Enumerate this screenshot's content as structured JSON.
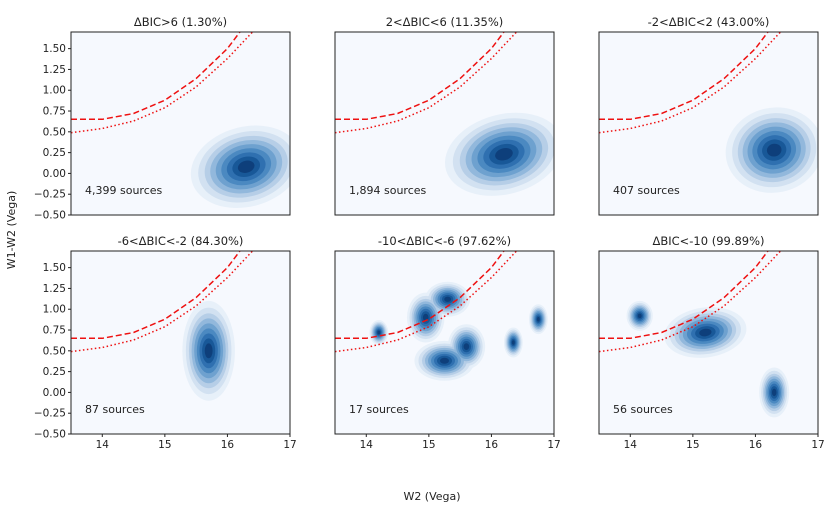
{
  "chart_data": {
    "type": "kde-contour-grid",
    "xlabel": "W2 (Vega)",
    "ylabel": "W1-W2 (Vega)",
    "xlim": [
      13.5,
      17
    ],
    "ylim": [
      -0.5,
      1.7
    ],
    "xticks": [
      14,
      15,
      16,
      17
    ],
    "xtick_labels": [
      "14",
      "15",
      "16",
      "17"
    ],
    "yticks": [
      -0.5,
      -0.25,
      0,
      0.25,
      0.5,
      0.75,
      1.0,
      1.25,
      1.5
    ],
    "ytick_labels": [
      "−0.50",
      "−0.25",
      "0.00",
      "0.25",
      "0.50",
      "0.75",
      "1.00",
      "1.25",
      "1.50"
    ],
    "colors": {
      "background": "#f6f9fe",
      "curve": "#ee1111",
      "levels": [
        "#e6eef8",
        "#cfdff0",
        "#b2cce6",
        "#8eb6da",
        "#6a9ecd",
        "#4786bf",
        "#2c6eae",
        "#165596",
        "#0d3d78"
      ]
    },
    "reference_curves": [
      {
        "name": "dashed",
        "style": "dashed",
        "points": [
          [
            13.5,
            0.65
          ],
          [
            14.0,
            0.65
          ],
          [
            14.5,
            0.72
          ],
          [
            15.0,
            0.88
          ],
          [
            15.5,
            1.14
          ],
          [
            16.0,
            1.5
          ],
          [
            16.2,
            1.7
          ]
        ]
      },
      {
        "name": "dotted",
        "style": "dotted",
        "points": [
          [
            13.5,
            0.49
          ],
          [
            14.0,
            0.54
          ],
          [
            14.5,
            0.63
          ],
          [
            15.0,
            0.79
          ],
          [
            15.5,
            1.04
          ],
          [
            16.0,
            1.38
          ],
          [
            16.4,
            1.7
          ]
        ]
      }
    ],
    "panels": [
      {
        "title": "ΔBIC>6 (1.30%)",
        "count_label": "4,399 sources",
        "blobs": [
          {
            "x": 16.3,
            "y": 0.08,
            "sx": 0.3,
            "sy": 0.16,
            "rot": -15
          }
        ]
      },
      {
        "title": "2<ΔBIC<6 (11.35%)",
        "count_label": "1,894 sources",
        "blobs": [
          {
            "x": 16.2,
            "y": 0.23,
            "sx": 0.32,
            "sy": 0.16,
            "rot": -15
          }
        ]
      },
      {
        "title": "-2<ΔBIC<2 (43.00%)",
        "count_label": "407 sources",
        "blobs": [
          {
            "x": 16.3,
            "y": 0.28,
            "sx": 0.26,
            "sy": 0.17,
            "rot": -12
          }
        ]
      },
      {
        "title": "-6<ΔBIC<-2 (84.30%)",
        "count_label": "87 sources",
        "blobs": [
          {
            "x": 15.7,
            "y": 0.5,
            "sx": 0.14,
            "sy": 0.2,
            "rot": 0
          }
        ]
      },
      {
        "title": "-10<ΔBIC<-6 (97.62%)",
        "count_label": "17 sources",
        "blobs": [
          {
            "x": 15.3,
            "y": 1.12,
            "sx": 0.12,
            "sy": 0.07,
            "rot": 0
          },
          {
            "x": 14.95,
            "y": 0.9,
            "sx": 0.1,
            "sy": 0.1,
            "rot": 0
          },
          {
            "x": 15.25,
            "y": 0.38,
            "sx": 0.16,
            "sy": 0.08,
            "rot": 0
          },
          {
            "x": 15.6,
            "y": 0.55,
            "sx": 0.1,
            "sy": 0.09,
            "rot": 0
          },
          {
            "x": 16.75,
            "y": 0.88,
            "sx": 0.05,
            "sy": 0.06,
            "rot": 0
          },
          {
            "x": 16.35,
            "y": 0.6,
            "sx": 0.05,
            "sy": 0.06,
            "rot": 0
          },
          {
            "x": 14.2,
            "y": 0.72,
            "sx": 0.05,
            "sy": 0.05,
            "rot": 0
          }
        ]
      },
      {
        "title": "ΔBIC<-10 (99.89%)",
        "count_label": "56 sources",
        "blobs": [
          {
            "x": 15.2,
            "y": 0.72,
            "sx": 0.22,
            "sy": 0.1,
            "rot": -8
          },
          {
            "x": 14.15,
            "y": 0.92,
            "sx": 0.07,
            "sy": 0.06,
            "rot": 0
          },
          {
            "x": 16.3,
            "y": 0.0,
            "sx": 0.08,
            "sy": 0.1,
            "rot": 0
          }
        ]
      }
    ]
  }
}
